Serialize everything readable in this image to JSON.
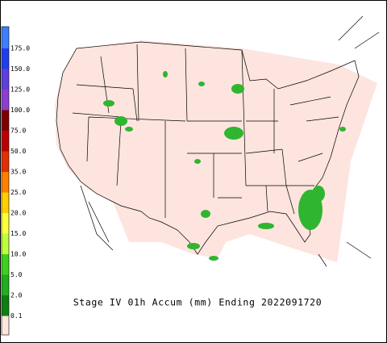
{
  "title": "Stage IV 01h Accum (mm) Ending 2022091720",
  "legend": {
    "labels": [
      "175.0",
      "150.0",
      "125.0",
      "100.0",
      "75.0",
      "50.0",
      "35.0",
      "25.0",
      "20.0",
      "15.0",
      "10.0",
      "5.0",
      "2.0",
      "0.1"
    ],
    "colors": [
      "#3f7fff",
      "#1f3fef",
      "#5f3fdf",
      "#8f3fcf",
      "#7f0000",
      "#bf0000",
      "#e03000",
      "#ff7f00",
      "#ffcf00",
      "#ffff3f",
      "#bfff3f",
      "#3fcf1f",
      "#1faf1f",
      "#0f7f0f",
      "#fde6de"
    ]
  }
}
